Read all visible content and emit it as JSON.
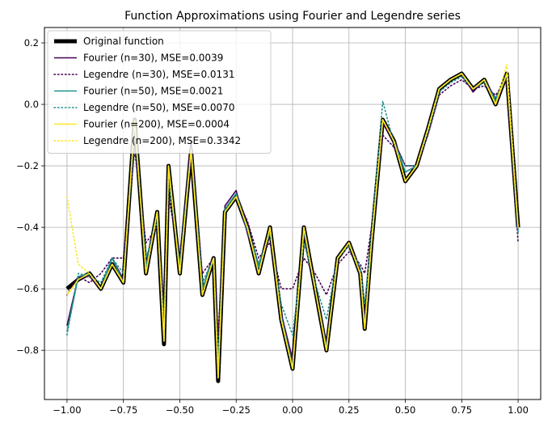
{
  "chart_data": {
    "type": "line",
    "title": "Function Approximations using Fourier and Legendre series",
    "xlabel": "",
    "ylabel": "",
    "xlim": [
      -1.1,
      1.1
    ],
    "ylim": [
      -0.96,
      0.25
    ],
    "x_ticks": [
      -1.0,
      -0.75,
      -0.5,
      -0.25,
      0.0,
      0.25,
      0.5,
      0.75,
      1.0
    ],
    "x_tick_labels": [
      "−1.00",
      "−0.75",
      "−0.50",
      "−0.25",
      "0.00",
      "0.25",
      "0.50",
      "0.75",
      "1.00"
    ],
    "y_ticks": [
      0.2,
      0.0,
      -0.2,
      -0.4,
      -0.6,
      -0.8
    ],
    "y_tick_labels": [
      "0.2",
      "0.0",
      "−0.2",
      "−0.4",
      "−0.6",
      "−0.8"
    ],
    "grid": true,
    "legend_position": "upper-left",
    "x": [
      -1.0,
      -0.95,
      -0.9,
      -0.85,
      -0.8,
      -0.75,
      -0.7,
      -0.65,
      -0.6,
      -0.57,
      -0.55,
      -0.5,
      -0.45,
      -0.4,
      -0.35,
      -0.33,
      -0.3,
      -0.25,
      -0.2,
      -0.15,
      -0.1,
      -0.05,
      0.0,
      0.05,
      0.1,
      0.15,
      0.2,
      0.25,
      0.3,
      0.32,
      0.35,
      0.4,
      0.45,
      0.5,
      0.55,
      0.6,
      0.65,
      0.7,
      0.75,
      0.8,
      0.85,
      0.9,
      0.95,
      1.0
    ],
    "series": [
      {
        "name": "Original function",
        "color": "#000000",
        "style": "solid",
        "width": 5,
        "values": [
          -0.6,
          -0.57,
          -0.55,
          -0.6,
          -0.52,
          -0.58,
          -0.05,
          -0.55,
          -0.35,
          -0.78,
          -0.2,
          -0.55,
          -0.15,
          -0.62,
          -0.5,
          -0.9,
          -0.35,
          -0.3,
          -0.4,
          -0.55,
          -0.4,
          -0.7,
          -0.86,
          -0.4,
          -0.6,
          -0.8,
          -0.5,
          -0.45,
          -0.55,
          -0.73,
          -0.45,
          -0.05,
          -0.12,
          -0.25,
          -0.2,
          -0.08,
          0.05,
          0.08,
          0.1,
          0.05,
          0.08,
          0.0,
          0.1,
          -0.4
        ]
      },
      {
        "name": "Fourier (n=30), MSE=0.0039",
        "color": "#440154",
        "style": "solid",
        "width": 1.6,
        "values": [
          -0.72,
          -0.56,
          -0.56,
          -0.6,
          -0.5,
          -0.57,
          -0.08,
          -0.52,
          -0.35,
          -0.75,
          -0.22,
          -0.53,
          -0.12,
          -0.6,
          -0.5,
          -0.87,
          -0.33,
          -0.28,
          -0.42,
          -0.52,
          -0.42,
          -0.68,
          -0.83,
          -0.42,
          -0.6,
          -0.78,
          -0.5,
          -0.45,
          -0.54,
          -0.7,
          -0.44,
          -0.06,
          -0.12,
          -0.2,
          -0.2,
          -0.08,
          0.05,
          0.08,
          0.1,
          0.04,
          0.08,
          0.02,
          0.09,
          -0.4
        ]
      },
      {
        "name": "Legendre (n=30), MSE=0.0131",
        "color": "#440154",
        "style": "dotted",
        "width": 1.6,
        "values": [
          -0.62,
          -0.56,
          -0.58,
          -0.55,
          -0.5,
          -0.5,
          -0.15,
          -0.45,
          -0.4,
          -0.65,
          -0.3,
          -0.5,
          -0.18,
          -0.55,
          -0.5,
          -0.75,
          -0.35,
          -0.3,
          -0.38,
          -0.5,
          -0.45,
          -0.6,
          -0.6,
          -0.5,
          -0.55,
          -0.62,
          -0.52,
          -0.48,
          -0.52,
          -0.55,
          -0.4,
          -0.1,
          -0.14,
          -0.22,
          -0.2,
          -0.1,
          0.03,
          0.06,
          0.08,
          0.05,
          0.06,
          0.03,
          0.08,
          -0.45
        ]
      },
      {
        "name": "Fourier (n=50), MSE=0.0021",
        "color": "#21918c",
        "style": "solid",
        "width": 1.6,
        "values": [
          -0.74,
          -0.56,
          -0.55,
          -0.6,
          -0.5,
          -0.58,
          -0.06,
          -0.53,
          -0.35,
          -0.76,
          -0.2,
          -0.54,
          -0.14,
          -0.6,
          -0.5,
          -0.88,
          -0.34,
          -0.29,
          -0.41,
          -0.53,
          -0.41,
          -0.69,
          -0.85,
          -0.41,
          -0.6,
          -0.79,
          -0.5,
          -0.45,
          -0.55,
          -0.72,
          -0.45,
          -0.05,
          -0.12,
          -0.22,
          -0.2,
          -0.08,
          0.05,
          0.08,
          0.1,
          0.05,
          0.08,
          0.01,
          0.1,
          -0.42
        ]
      },
      {
        "name": "Legendre (n=50), MSE=0.0070",
        "color": "#21918c",
        "style": "dotted",
        "width": 1.6,
        "values": [
          -0.75,
          -0.55,
          -0.56,
          -0.58,
          -0.5,
          -0.55,
          -0.1,
          -0.5,
          -0.38,
          -0.7,
          -0.25,
          -0.52,
          -0.15,
          -0.58,
          -0.5,
          -0.82,
          -0.34,
          -0.3,
          -0.4,
          -0.52,
          -0.42,
          -0.65,
          -0.75,
          -0.45,
          -0.58,
          -0.7,
          -0.5,
          -0.46,
          -0.53,
          -0.65,
          -0.42,
          0.01,
          -0.13,
          -0.2,
          -0.2,
          -0.09,
          0.04,
          0.07,
          0.09,
          0.05,
          0.07,
          0.02,
          0.09,
          -0.41
        ]
      },
      {
        "name": "Fourier (n=200), MSE=0.0004",
        "color": "#fde725",
        "style": "solid",
        "width": 1.6,
        "values": [
          -0.62,
          -0.57,
          -0.55,
          -0.6,
          -0.52,
          -0.58,
          -0.05,
          -0.55,
          -0.35,
          -0.77,
          -0.2,
          -0.55,
          -0.15,
          -0.62,
          -0.5,
          -0.89,
          -0.35,
          -0.3,
          -0.4,
          -0.55,
          -0.4,
          -0.7,
          -0.86,
          -0.4,
          -0.6,
          -0.8,
          -0.5,
          -0.45,
          -0.55,
          -0.73,
          -0.45,
          -0.05,
          -0.12,
          -0.25,
          -0.2,
          -0.08,
          0.05,
          0.08,
          0.1,
          0.05,
          0.08,
          0.0,
          0.1,
          -0.4
        ]
      },
      {
        "name": "Legendre (n=200), MSE=0.3342",
        "color": "#fde725",
        "style": "dotted",
        "width": 1.6,
        "values": [
          -0.3,
          -0.52,
          -0.55,
          -0.6,
          -0.52,
          -0.58,
          -0.05,
          -0.55,
          -0.35,
          -0.77,
          -0.2,
          -0.55,
          -0.15,
          -0.62,
          -0.5,
          -0.89,
          -0.35,
          -0.3,
          -0.4,
          -0.55,
          -0.4,
          -0.7,
          -0.86,
          -0.4,
          -0.6,
          -0.8,
          -0.5,
          -0.45,
          -0.55,
          -0.73,
          -0.45,
          -0.05,
          -0.12,
          -0.25,
          -0.2,
          -0.08,
          0.05,
          0.08,
          0.1,
          0.05,
          0.08,
          0.0,
          0.13,
          -0.4
        ]
      }
    ]
  }
}
